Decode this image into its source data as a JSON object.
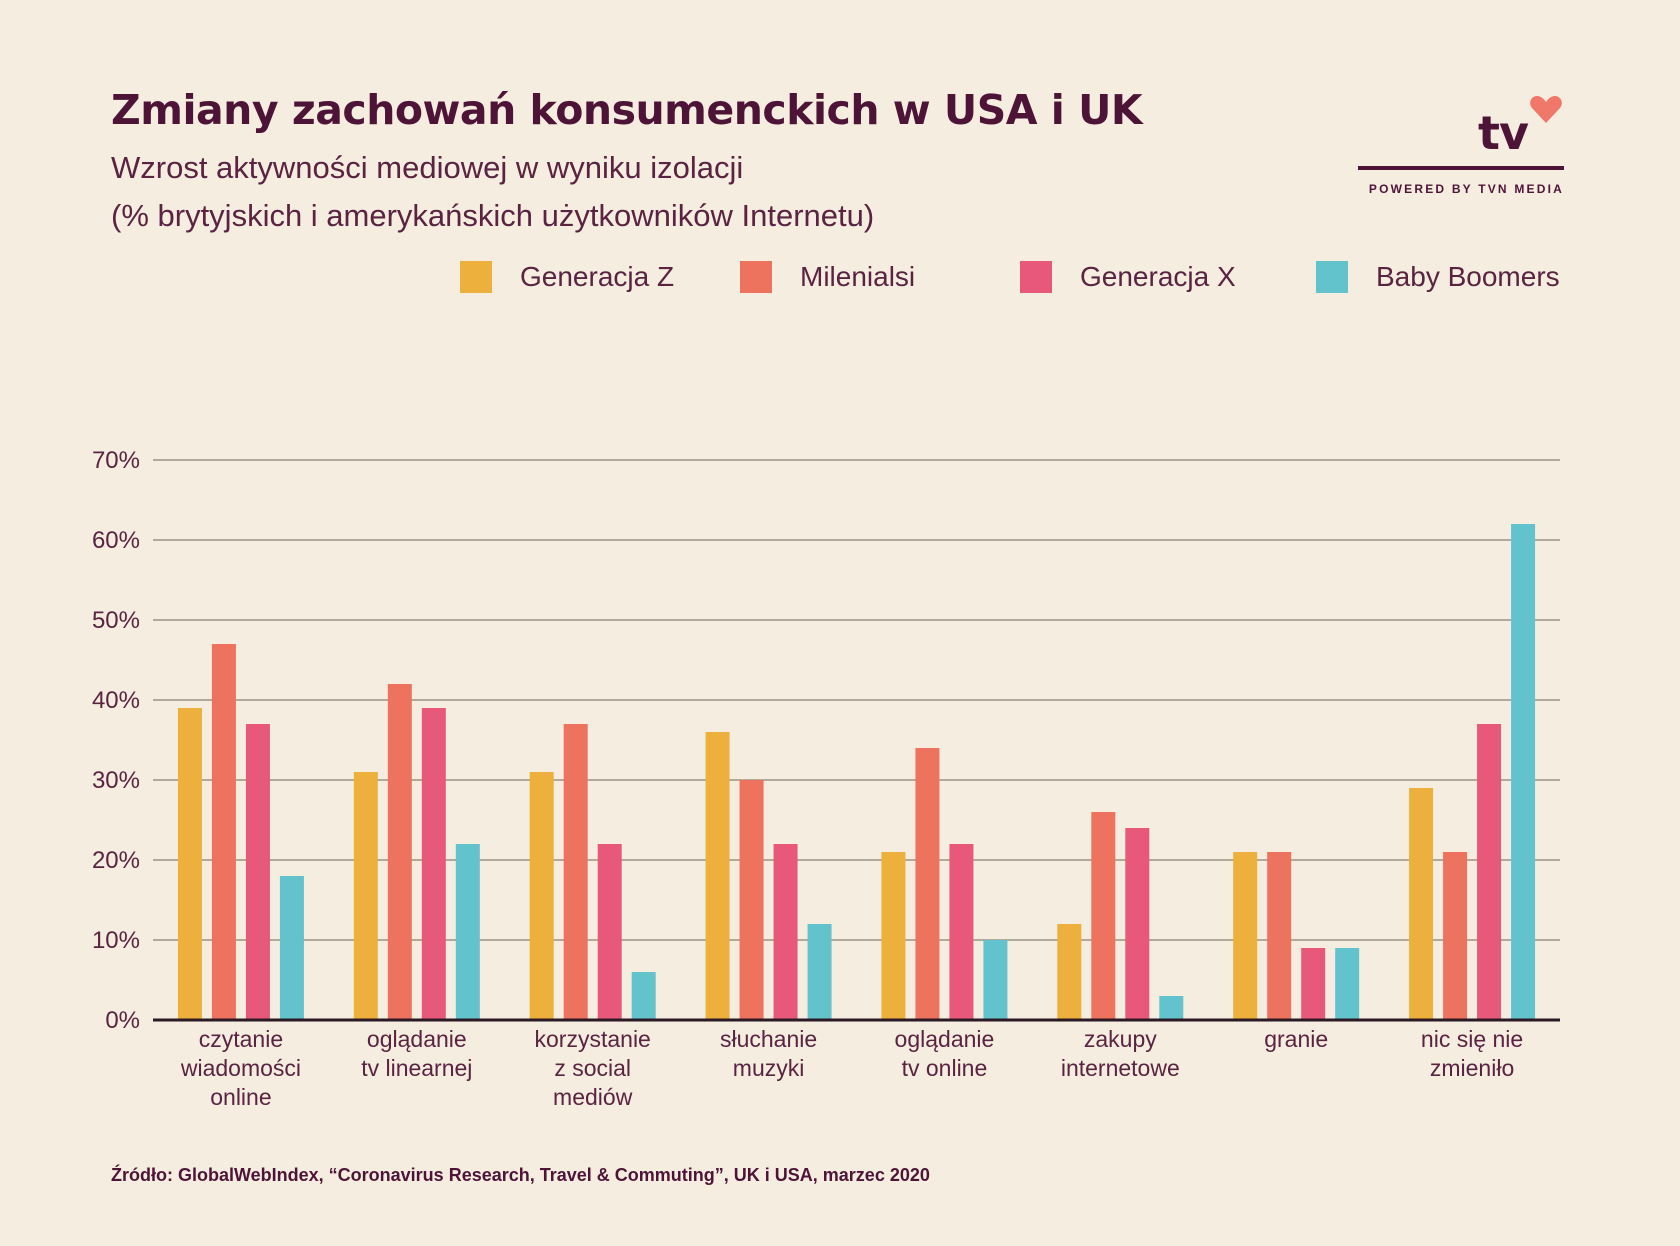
{
  "header": {
    "title": "Zmiany zachowań konsumenckich w USA i UK",
    "subtitle_line1": "Wzrost aktywności mediowej w wyniku izolacji",
    "subtitle_line2": "(% brytyjskich i amerykańskich użytkowników Internetu)"
  },
  "logo": {
    "text": "tv",
    "tagline": "POWERED BY TVN MEDIA",
    "heart_color": "#f0786a"
  },
  "source": "Źródło: GlobalWebIndex, “Coronavirus Research, Travel & Commuting”, UK i USA, marzec 2020",
  "chart_data": {
    "type": "bar",
    "categories": [
      [
        "czytanie",
        "wiadomości",
        "online"
      ],
      [
        "oglądanie",
        "tv linearnej"
      ],
      [
        "korzystanie",
        "z social",
        "mediów"
      ],
      [
        "słuchanie",
        "muzyki"
      ],
      [
        "oglądanie",
        "tv online"
      ],
      [
        "zakupy",
        "internetowe"
      ],
      [
        "granie"
      ],
      [
        "nic się nie",
        "zmieniło"
      ]
    ],
    "series": [
      {
        "name": "Generacja Z",
        "color": "#eeb03c",
        "values": [
          39,
          31,
          31,
          36,
          21,
          12,
          21,
          29
        ]
      },
      {
        "name": "Milenialsi",
        "color": "#ee735f",
        "values": [
          47,
          42,
          37,
          30,
          34,
          26,
          21,
          21
        ]
      },
      {
        "name": "Generacja X",
        "color": "#e8587a",
        "values": [
          37,
          39,
          22,
          22,
          22,
          24,
          9,
          37
        ]
      },
      {
        "name": "Baby Boomers",
        "color": "#63c3cc",
        "values": [
          18,
          22,
          6,
          12,
          10,
          3,
          9,
          62
        ]
      }
    ],
    "ylim": [
      0,
      70
    ],
    "yticks": [
      0,
      10,
      20,
      30,
      40,
      50,
      60,
      70
    ],
    "ytick_labels": [
      "0%",
      "10%",
      "20%",
      "30%",
      "40%",
      "50%",
      "60%",
      "70%"
    ],
    "grid": true,
    "legend": "top"
  }
}
